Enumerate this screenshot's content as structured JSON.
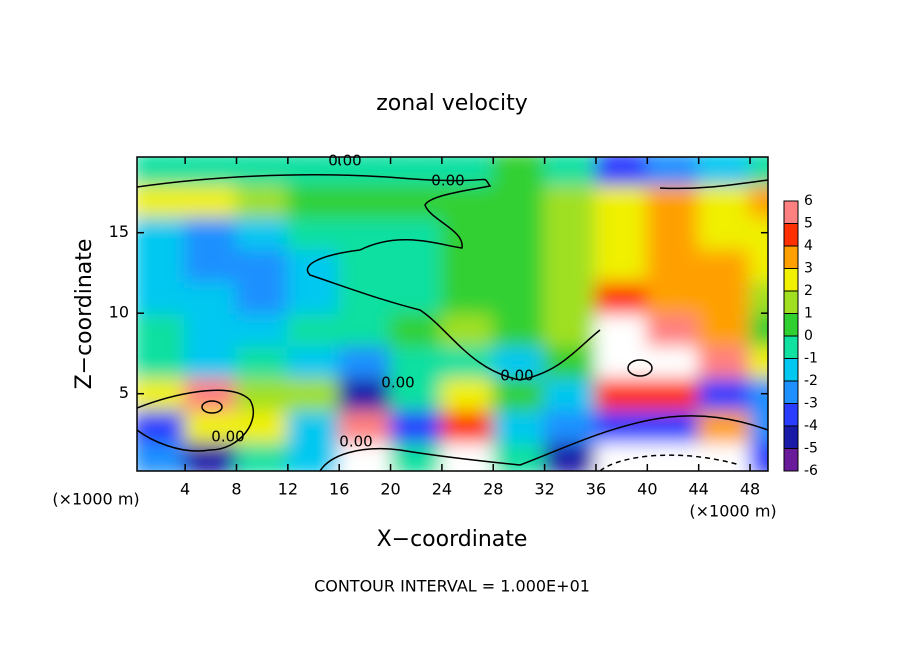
{
  "chart_data": {
    "type": "heatmap",
    "title": "zonal velocity",
    "x_label": "X−coordinate",
    "y_label": "Z−coordinate",
    "x_unit": "(×1000 m)",
    "footer": "CONTOUR INTERVAL = 1.000E+01",
    "x": [
      2,
      6,
      10,
      14,
      18,
      22,
      26,
      30,
      34,
      38,
      42,
      46,
      50
    ],
    "y": [
      1,
      3,
      5,
      7,
      9,
      11,
      13,
      15,
      17,
      19
    ],
    "values": [
      [
        -2,
        -4,
        0,
        -1,
        7,
        0,
        7,
        0,
        -4,
        -7,
        -7,
        -7,
        -3
      ],
      [
        -3,
        3,
        3,
        -1,
        6,
        -3,
        5,
        -1,
        -2,
        -3,
        -3,
        4,
        -2
      ],
      [
        3,
        6,
        2,
        2,
        -4,
        0,
        3,
        1,
        -1,
        5,
        5,
        -3,
        -2
      ],
      [
        0,
        -1,
        0,
        -1,
        -2,
        0,
        0,
        -1,
        1,
        7,
        7,
        6,
        3
      ],
      [
        0,
        -1,
        -1,
        -0.5,
        0,
        1,
        1.5,
        1,
        2,
        7,
        6,
        4,
        1
      ],
      [
        -1,
        -1.5,
        -2,
        -1,
        0,
        0,
        0.5,
        1,
        2,
        5,
        4,
        4,
        2
      ],
      [
        -1,
        -2,
        -2,
        -1,
        -0.5,
        0,
        1,
        1,
        2,
        3,
        4,
        4,
        3
      ],
      [
        -1,
        -2,
        -1.5,
        -0.5,
        0,
        0,
        0.5,
        1,
        2,
        3,
        4,
        3,
        3
      ],
      [
        3,
        3,
        2,
        1,
        1,
        1,
        0.5,
        1,
        2,
        3,
        4,
        3,
        4
      ],
      [
        0,
        0,
        0,
        0,
        0,
        0,
        0,
        0.5,
        0,
        -3,
        -2,
        -1,
        0
      ]
    ],
    "xlim": [
      0.25,
      49.4
    ],
    "ylim": [
      0.2,
      19.7
    ],
    "xticks": [
      4,
      8,
      12,
      16,
      20,
      24,
      28,
      32,
      36,
      40,
      44,
      48
    ],
    "yticks": [
      5,
      10,
      15
    ],
    "colorbar_ticks": [
      -6,
      -5,
      -4,
      -3,
      -2,
      -1,
      0,
      1,
      2,
      3,
      4,
      5,
      6
    ],
    "colorbar_colors": [
      "#6a1b9a",
      "#1a1aa8",
      "#2a3cff",
      "#1e90ff",
      "#00c8f0",
      "#10e0a0",
      "#30d030",
      "#a0e020",
      "#f0f000",
      "#ffa000",
      "#ff3000",
      "#ff8080"
    ],
    "contour_labels": [
      "0.00",
      "0.00",
      "0.00",
      "0.00",
      "0.00",
      "0.00"
    ]
  }
}
